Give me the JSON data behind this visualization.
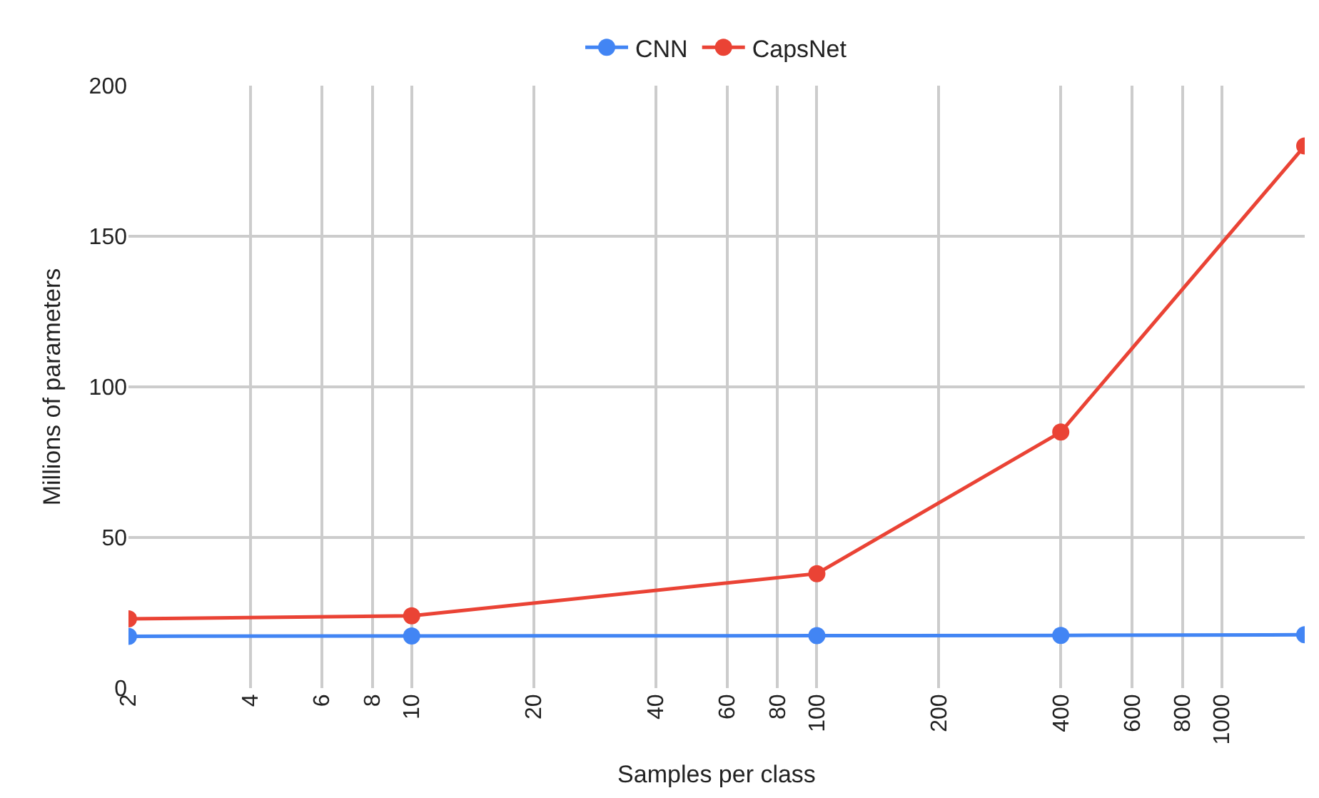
{
  "chart_data": {
    "type": "line",
    "xlabel": "Samples per class",
    "ylabel": "Millions of parameters",
    "x": [
      2,
      10,
      100,
      400,
      1600
    ],
    "series": [
      {
        "name": "CNN",
        "color": "#4285f4",
        "values": [
          17.2,
          17.3,
          17.4,
          17.5,
          17.7
        ]
      },
      {
        "name": "CapsNet",
        "color": "#ea4335",
        "values": [
          23,
          24,
          38,
          85,
          180
        ]
      }
    ],
    "log": "x",
    "xlim": [
      2,
      1600
    ],
    "xticks": [
      2,
      4,
      6,
      8,
      10,
      20,
      40,
      60,
      80,
      100,
      200,
      400,
      600,
      800,
      1000
    ],
    "ylim": [
      0,
      200
    ],
    "yticks": [
      0,
      50,
      100,
      150,
      200
    ],
    "grid": true,
    "legend": "top",
    "marker": "circle",
    "line_style": "solid"
  }
}
